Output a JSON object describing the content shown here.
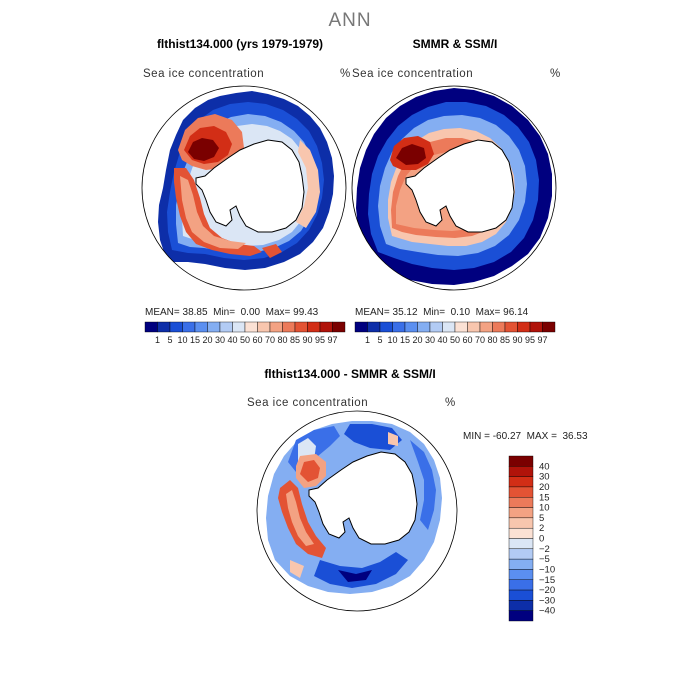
{
  "main_title": "ANN",
  "panels": [
    {
      "title": "flthist134.000 (yrs 1979-1979)",
      "var_label": "Sea ice concentration",
      "units": "%",
      "stats": {
        "mean_label": "MEAN=",
        "mean": "38.85",
        "min_label": "Min=",
        "min": "0.00",
        "max_label": "Max=",
        "max": "99.43"
      }
    },
    {
      "title": "SMMR & SSM/I",
      "var_label": "Sea ice concentration",
      "units": "%",
      "stats": {
        "mean_label": "MEAN=",
        "mean": "35.12",
        "min_label": "Min=",
        "min": "0.10",
        "max_label": "Max=",
        "max": "96.14"
      }
    },
    {
      "title": "flthist134.000 - SMMR & SSM/I",
      "var_label": "Sea ice concentration",
      "units": "%",
      "minmax": "MIN = -60.27  MAX =  36.53"
    }
  ],
  "colorbar_concentration": {
    "colors": [
      "#00007f",
      "#0d2ea8",
      "#1a4fd6",
      "#3a6fe8",
      "#5b8ff0",
      "#84aef2",
      "#b2cbf4",
      "#dbe6f5",
      "#fbe1d4",
      "#f8c6ae",
      "#f3a283",
      "#ec7a5a",
      "#e35334",
      "#d22e16",
      "#b0130a",
      "#7a0000"
    ],
    "labels": [
      "1",
      "5",
      "10",
      "15",
      "20",
      "30",
      "40",
      "50",
      "60",
      "70",
      "80",
      "85",
      "90",
      "95",
      "97"
    ]
  },
  "colorbar_difference": {
    "colors": [
      "#7a0000",
      "#b0130a",
      "#d22e16",
      "#e35334",
      "#ec7a5a",
      "#f3a283",
      "#f8c6ae",
      "#fbe1d4",
      "#dbe6f5",
      "#b2cbf4",
      "#84aef2",
      "#5b8ff0",
      "#3a6fe8",
      "#1a4fd6",
      "#0d2ea8",
      "#00007f"
    ],
    "labels": [
      "40",
      "30",
      "20",
      "15",
      "10",
      "5",
      "2",
      "0",
      "−2",
      "−5",
      "−10",
      "−15",
      "−20",
      "−30",
      "−40"
    ]
  },
  "icons": {
    "map_left": "polar-map-icon",
    "map_right": "polar-map-icon",
    "map_diff": "polar-map-icon"
  }
}
